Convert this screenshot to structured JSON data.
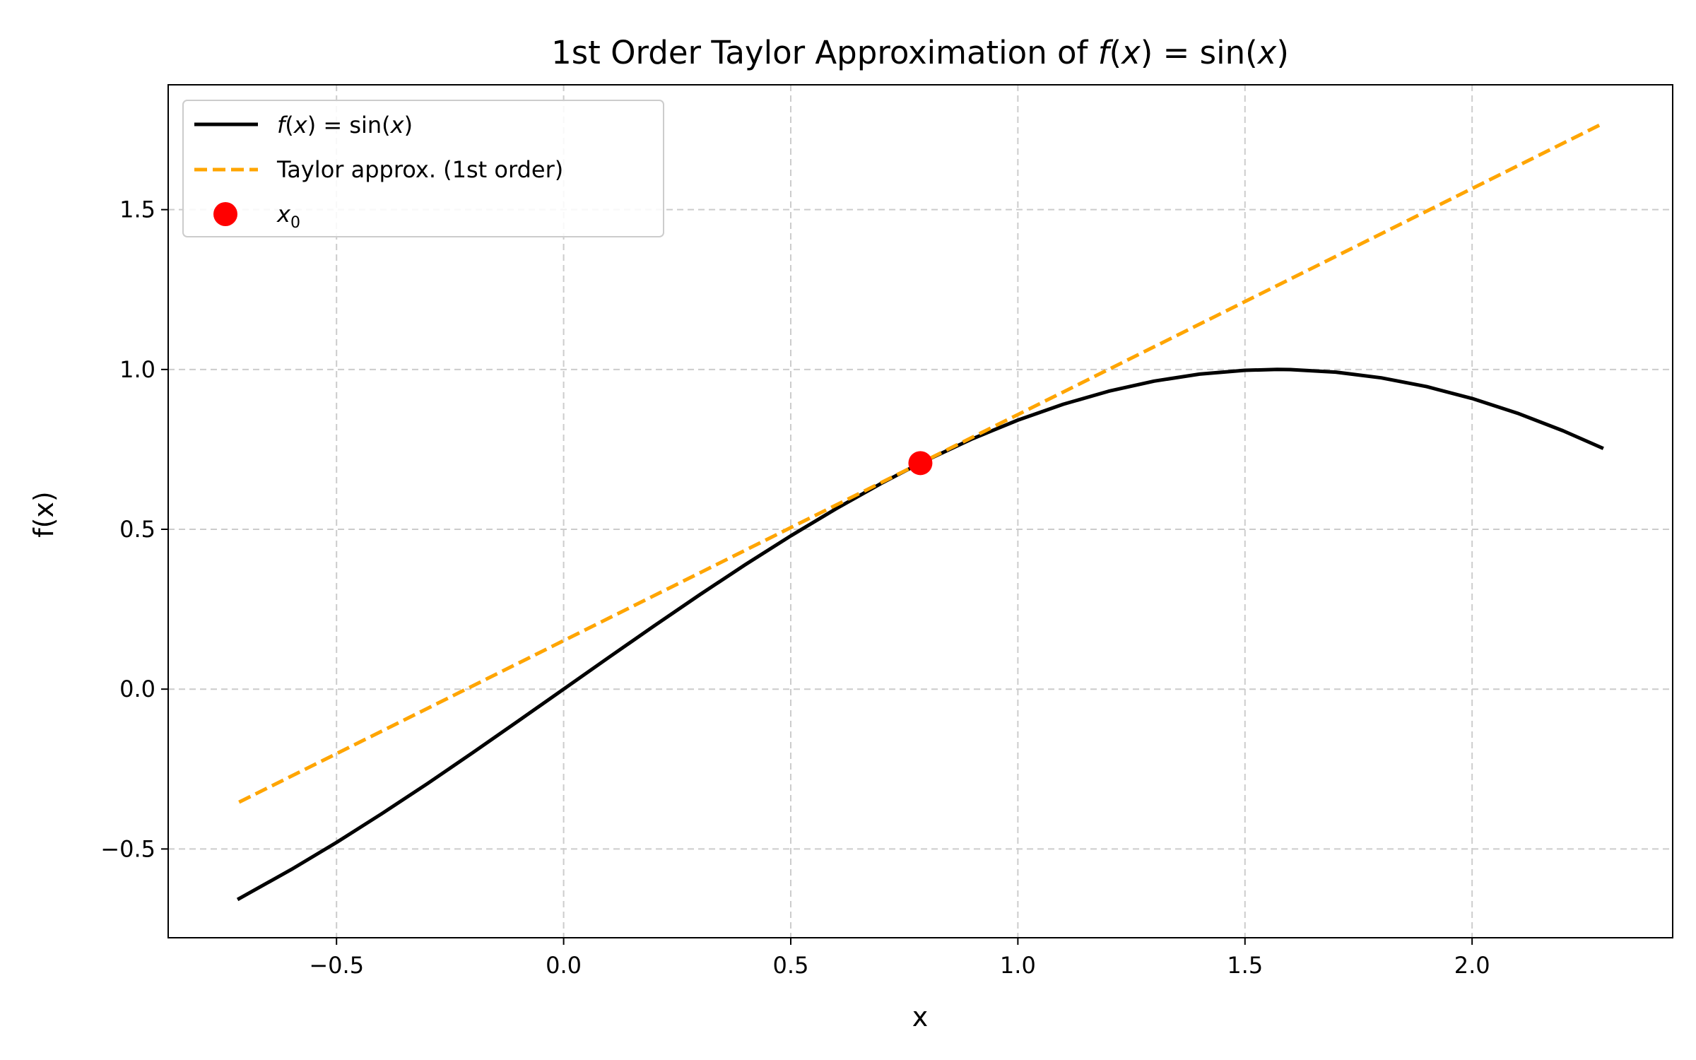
{
  "chart_data": {
    "type": "line",
    "title": {
      "prefix": "1st Order Taylor Approximation of ",
      "f": "f",
      "open": "(",
      "var": "x",
      "close": ")",
      "eq": " = ",
      "fn": "sin",
      "fopen": "(",
      "fvar": "x",
      "fclose": ")"
    },
    "xlabel": "x",
    "ylabel": "f(x)",
    "xlim": [
      -0.8706,
      2.4416
    ],
    "ylim": [
      -0.7777,
      1.8905
    ],
    "xticks": [
      -0.5,
      0.0,
      0.5,
      1.0,
      1.5,
      2.0
    ],
    "xtick_labels": [
      "−0.5",
      "0.0",
      "0.5",
      "1.0",
      "1.5",
      "2.0"
    ],
    "yticks": [
      -0.5,
      0.0,
      0.5,
      1.0,
      1.5
    ],
    "ytick_labels": [
      "−0.5",
      "0.0",
      "0.5",
      "1.0",
      "1.5"
    ],
    "grid": true,
    "legend_position": "upper left",
    "x0": 0.7854,
    "y0": 0.7071,
    "series": [
      {
        "name": "f(x) = sin(x)",
        "style": "solid",
        "color": "#000000",
        "x": [
          -0.7146,
          -0.6,
          -0.5,
          -0.4,
          -0.3,
          -0.2,
          -0.1,
          0.0,
          0.1,
          0.2,
          0.3,
          0.4,
          0.5,
          0.6,
          0.7,
          0.7854,
          0.9,
          1.0,
          1.1,
          1.2,
          1.3,
          1.4,
          1.5,
          1.5708,
          1.6,
          1.7,
          1.8,
          1.9,
          2.0,
          2.1,
          2.2,
          2.2854
        ],
        "y": [
          -0.6555,
          -0.5646,
          -0.4794,
          -0.3894,
          -0.2955,
          -0.1987,
          -0.0998,
          0.0,
          0.0998,
          0.1987,
          0.2955,
          0.3894,
          0.4794,
          0.5646,
          0.6442,
          0.7071,
          0.7833,
          0.8415,
          0.8912,
          0.932,
          0.9636,
          0.9854,
          0.9975,
          1.0,
          0.9996,
          0.9917,
          0.9738,
          0.9463,
          0.9093,
          0.8632,
          0.8085,
          0.7551
        ]
      },
      {
        "name": "Taylor approx. (1st order)",
        "style": "dashed",
        "color": "#FFA500",
        "x": [
          -0.7146,
          2.2854
        ],
        "y": [
          -0.3536,
          1.7678
        ]
      },
      {
        "name": "x0",
        "style": "marker",
        "color": "#FF0000",
        "x": [
          0.7854
        ],
        "y": [
          0.7071
        ]
      }
    ],
    "legend": [
      {
        "f": "f",
        "open": "(",
        "var": "x",
        "close": ")",
        "eq": " = ",
        "fn": "sin",
        "fopen": "(",
        "fvar": "x",
        "fclose": ")"
      },
      {
        "label": "Taylor approx. (1st order)"
      },
      {
        "var": "x",
        "sub": "0"
      }
    ]
  }
}
